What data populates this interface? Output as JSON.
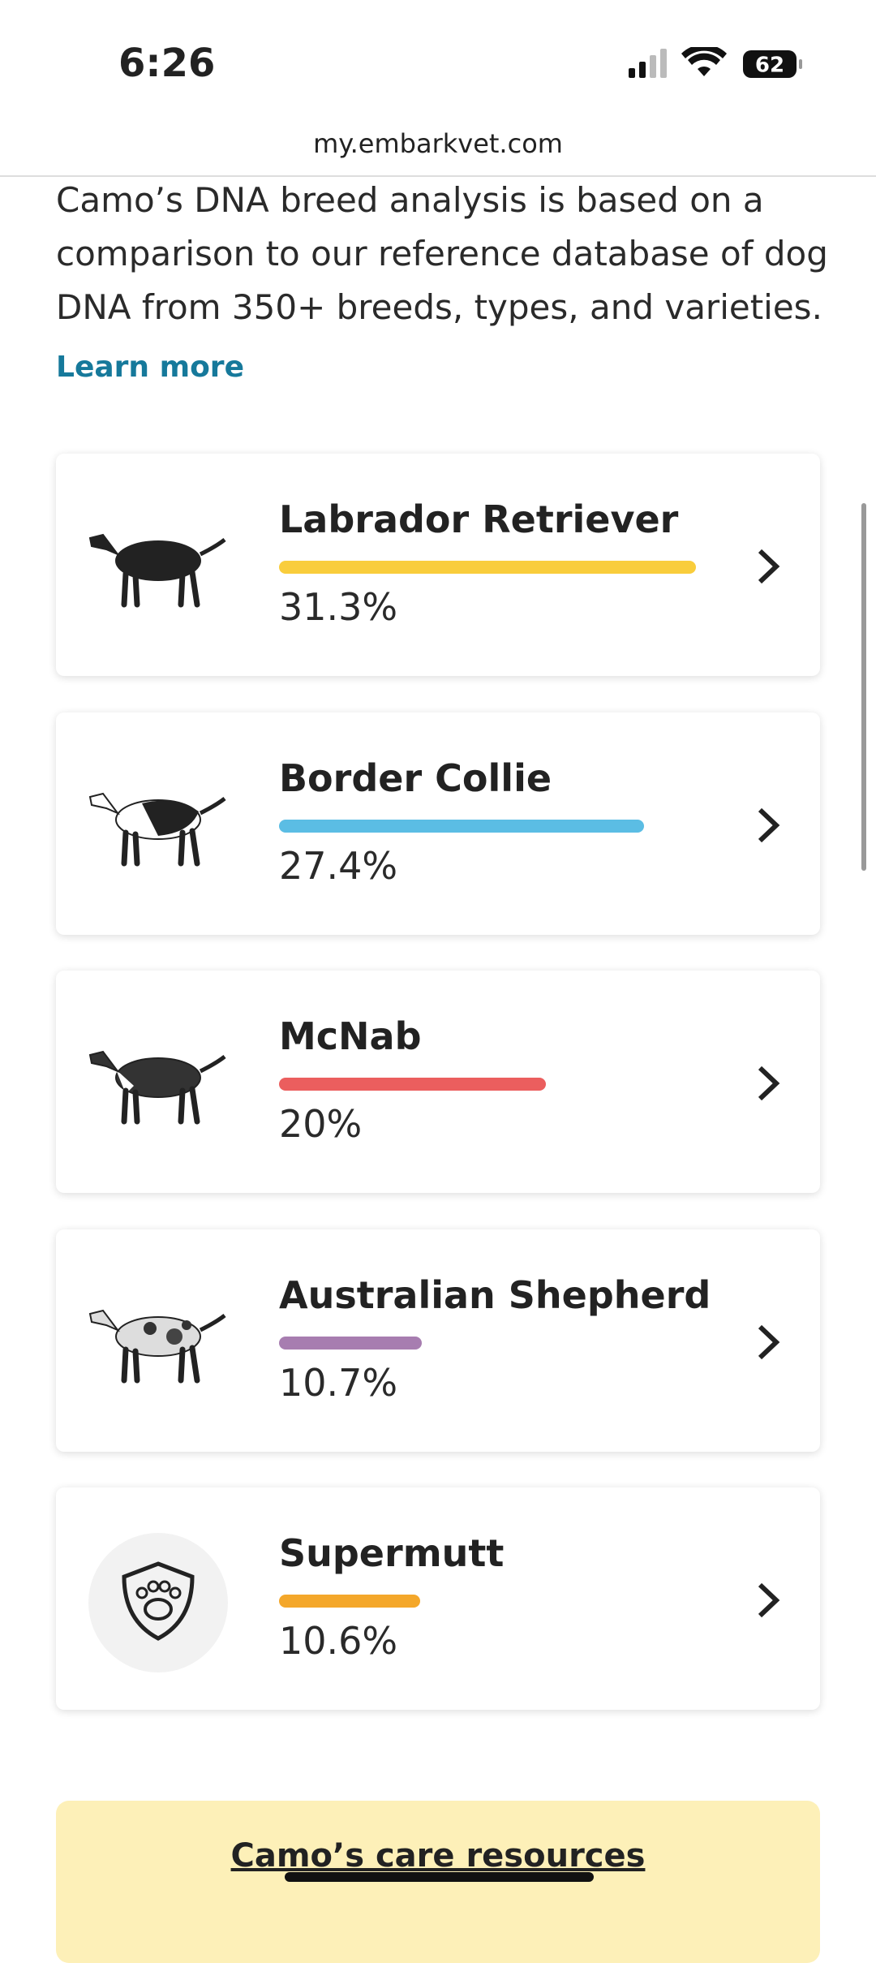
{
  "status": {
    "time": "6:26",
    "battery": "62"
  },
  "url": "my.embarkvet.com",
  "intro": {
    "text": "Camo’s DNA breed analysis is based on a comparison to our reference database of dog DNA from 350+ breeds, types, and varieties.",
    "link": "Learn more"
  },
  "breeds": [
    {
      "name": "Labrador Retriever",
      "value": 31.3,
      "value_label": "31.3%",
      "color": "#f9cd3c"
    },
    {
      "name": "Border Collie",
      "value": 27.4,
      "value_label": "27.4%",
      "color": "#5bbde4"
    },
    {
      "name": "McNab",
      "value": 20,
      "value_label": "20%",
      "color": "#eb5e5e"
    },
    {
      "name": "Australian Shepherd",
      "value": 10.7,
      "value_label": "10.7%",
      "color": "#a77db0"
    },
    {
      "name": "Supermutt",
      "value": 10.6,
      "value_label": "10.6%",
      "color": "#f4a72a"
    }
  ],
  "footer": {
    "title": "Camo’s care resources"
  }
}
